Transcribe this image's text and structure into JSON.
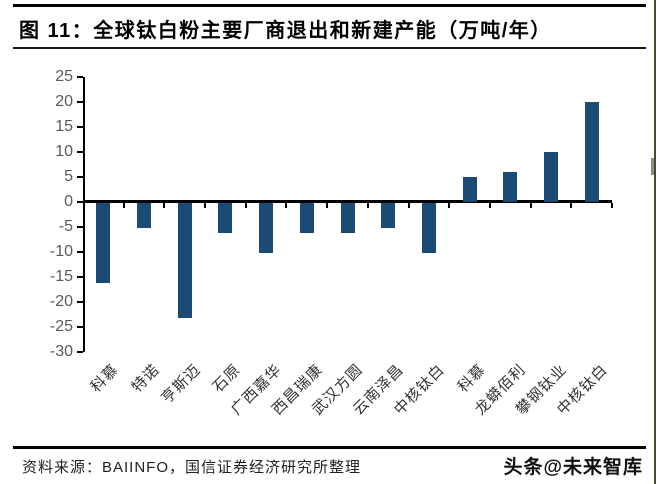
{
  "figure": {
    "title": "图 11：全球钛白粉主要厂商退出和新建产能（万吨/年）"
  },
  "chart_data": {
    "type": "bar",
    "title": "全球钛白粉主要厂商退出和新建产能（万吨/年）",
    "categories": [
      "科慕",
      "特诺",
      "亨斯迈",
      "石原",
      "广西嘉华",
      "西昌瑞康",
      "武汉方圆",
      "云南泽昌",
      "中核钛白",
      "科慕",
      "龙蟒佰利",
      "攀钢钛业",
      "中核钛白"
    ],
    "values": [
      -16,
      -5,
      -23,
      -6,
      -10,
      -6,
      -6,
      -5,
      -10,
      5,
      6,
      10,
      20
    ],
    "xlabel": "",
    "ylabel": "",
    "ylim": [
      -30,
      25
    ],
    "ytick_interval": 5,
    "yticks": [
      25,
      20,
      15,
      10,
      5,
      0,
      -5,
      -10,
      -15,
      -20,
      -25,
      -30
    ],
    "bar_color": "#1B4A74",
    "axis_color": "#000000",
    "ytick_label_color": "#595959",
    "category_label_color": "#333333",
    "grid": false,
    "legend_position": "none"
  },
  "footer": {
    "source": "资料来源：BAIINFO，国信证券经济研究所整理",
    "watermark": "头条@未来智库"
  }
}
